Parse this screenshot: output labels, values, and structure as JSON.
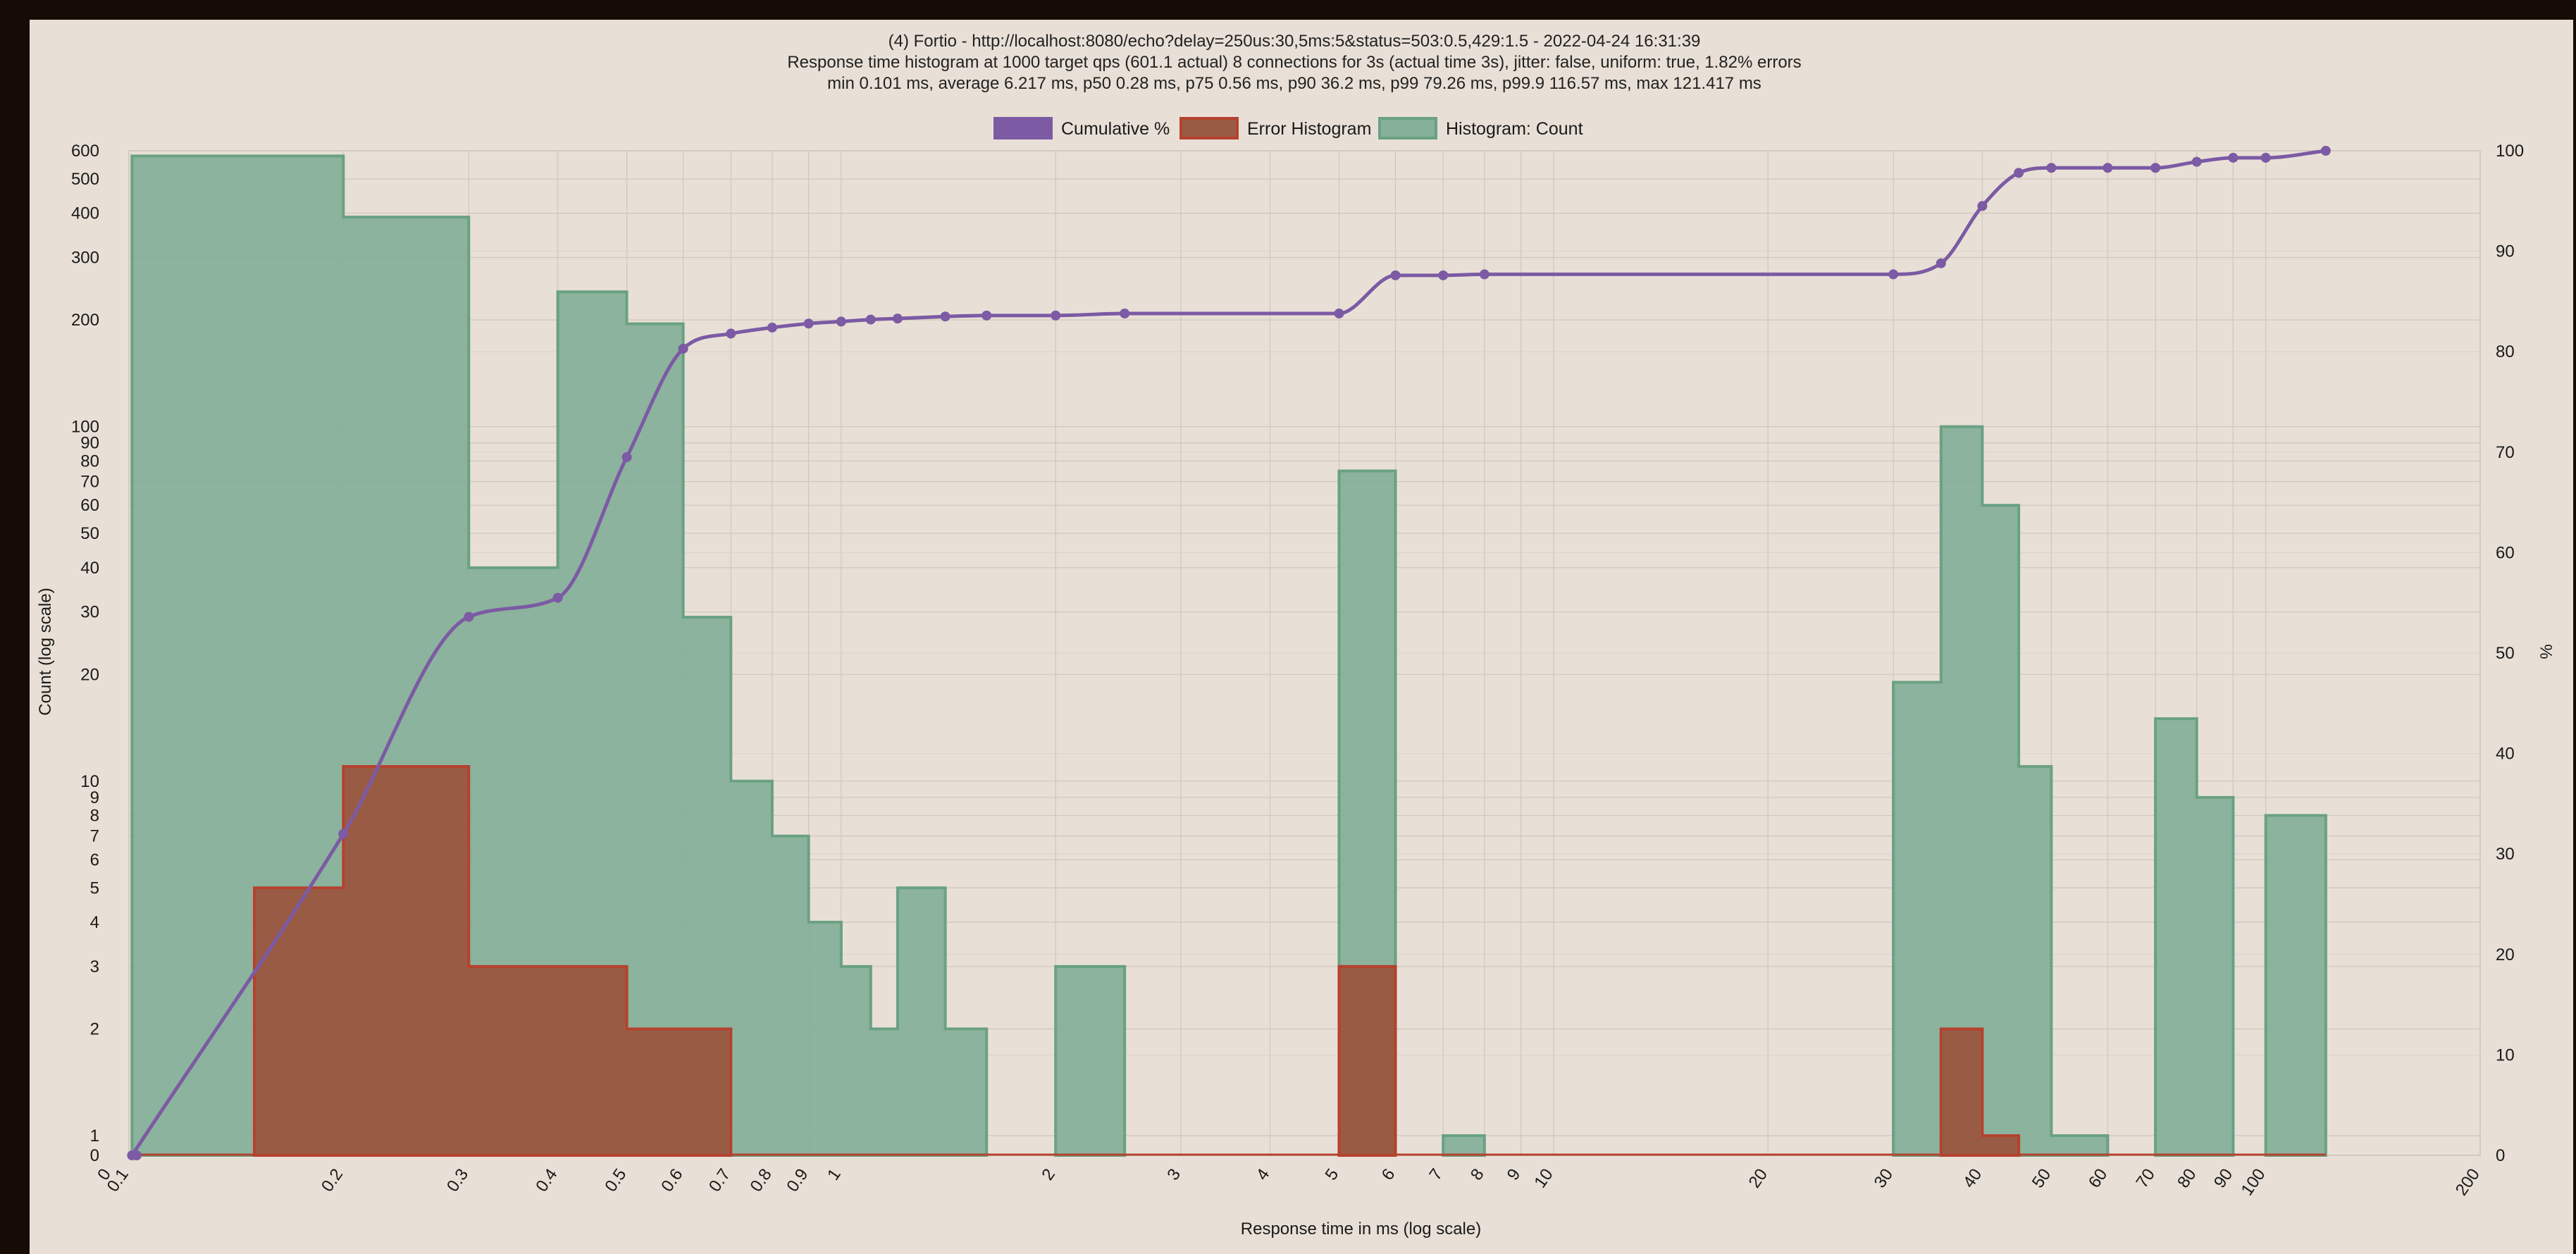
{
  "colors": {
    "background": "#e8e0d6",
    "outer": "#170b06",
    "cumulative": "#7c5aa4",
    "histogram_fill": "#87b09a",
    "histogram_stroke": "#6aa183",
    "error_fill": "#9a5b45",
    "error_stroke": "#b5422e",
    "grid": "#cfc6bc"
  },
  "chart_data": {
    "type": "bar",
    "title": [
      "(4) Fortio - http://localhost:8080/echo?delay=250us:30,5ms:5&status=503:0.5,429:1.5 - 2022-04-24 16:31:39",
      "Response time histogram at 1000 target qps (601.1 actual) 8 connections for 3s (actual time 3s), jitter: false, uniform: true, 1.82% errors",
      "min 0.101 ms, average 6.217 ms, p50 0.28 ms, p75 0.56 ms, p90 36.2 ms, p99 79.26 ms, p99.9 116.57 ms, max 121.417 ms"
    ],
    "xlabel": "Response time in ms (log scale)",
    "ylabel": "Count (log scale)",
    "y2label": "%",
    "x_scale": "log",
    "y_scale": "log",
    "xlim": [
      0.1,
      200
    ],
    "ylim": [
      0,
      600
    ],
    "y2lim": [
      0,
      100
    ],
    "grid": true,
    "legend_position": "top",
    "x_ticks": [
      "0",
      "0.1",
      "0.2",
      "0.3",
      "0.4",
      "0.5",
      "0.6",
      "0.7",
      "0.8",
      "0.9",
      "1",
      "2",
      "3",
      "4",
      "5",
      "6",
      "7",
      "8",
      "9",
      "10",
      "20",
      "30",
      "40",
      "50",
      "60",
      "70",
      "80",
      "90",
      "100",
      "200"
    ],
    "y_ticks": [
      "0",
      "1",
      "2",
      "3",
      "4",
      "5",
      "6",
      "7",
      "8",
      "9",
      "10",
      "20",
      "30",
      "40",
      "50",
      "60",
      "70",
      "80",
      "90",
      "100",
      "200",
      "300",
      "400",
      "500",
      "600"
    ],
    "y2_ticks": [
      "0",
      "10",
      "20",
      "30",
      "40",
      "50",
      "60",
      "70",
      "80",
      "90",
      "100"
    ],
    "legend": [
      "Cumulative %",
      "Error Histogram",
      "Histogram: Count"
    ],
    "series": [
      {
        "name": "Histogram: Count",
        "bins": [
          {
            "start": 0.101,
            "end": 0.2,
            "count": 580
          },
          {
            "start": 0.2,
            "end": 0.3,
            "count": 390
          },
          {
            "start": 0.3,
            "end": 0.4,
            "count": 40
          },
          {
            "start": 0.4,
            "end": 0.5,
            "count": 240
          },
          {
            "start": 0.5,
            "end": 0.6,
            "count": 195
          },
          {
            "start": 0.6,
            "end": 0.7,
            "count": 29
          },
          {
            "start": 0.7,
            "end": 0.8,
            "count": 10
          },
          {
            "start": 0.8,
            "end": 0.9,
            "count": 7
          },
          {
            "start": 0.9,
            "end": 1.0,
            "count": 4
          },
          {
            "start": 1.0,
            "end": 1.1,
            "count": 3
          },
          {
            "start": 1.1,
            "end": 1.2,
            "count": 2
          },
          {
            "start": 1.2,
            "end": 1.4,
            "count": 5
          },
          {
            "start": 1.4,
            "end": 1.6,
            "count": 2
          },
          {
            "start": 2.0,
            "end": 2.5,
            "count": 3
          },
          {
            "start": 5.0,
            "end": 6.0,
            "count": 75
          },
          {
            "start": 7.0,
            "end": 8.0,
            "count": 1
          },
          {
            "start": 30,
            "end": 35,
            "count": 19
          },
          {
            "start": 35,
            "end": 40,
            "count": 100
          },
          {
            "start": 40,
            "end": 45,
            "count": 60
          },
          {
            "start": 45,
            "end": 50,
            "count": 11
          },
          {
            "start": 50,
            "end": 60,
            "count": 1
          },
          {
            "start": 70,
            "end": 80,
            "count": 15
          },
          {
            "start": 80,
            "end": 90,
            "count": 9
          },
          {
            "start": 100,
            "end": 121.417,
            "count": 8
          }
        ]
      },
      {
        "name": "Error Histogram",
        "bins": [
          {
            "start": 0.15,
            "end": 0.2,
            "count": 5
          },
          {
            "start": 0.2,
            "end": 0.3,
            "count": 11
          },
          {
            "start": 0.3,
            "end": 0.5,
            "count": 3
          },
          {
            "start": 0.5,
            "end": 0.7,
            "count": 2
          },
          {
            "start": 5.0,
            "end": 6.0,
            "count": 3
          },
          {
            "start": 35,
            "end": 40,
            "count": 2
          },
          {
            "start": 40,
            "end": 45,
            "count": 1
          }
        ]
      },
      {
        "name": "Cumulative %",
        "x": [
          0.101,
          0.2,
          0.3,
          0.4,
          0.5,
          0.6,
          0.7,
          0.8,
          0.9,
          1.0,
          1.1,
          1.2,
          1.4,
          1.6,
          2.0,
          2.5,
          5.0,
          6.0,
          7.0,
          8.0,
          30,
          35,
          40,
          45,
          50,
          60,
          70,
          80,
          90,
          100,
          121.417
        ],
        "values": [
          0.0,
          32.0,
          53.6,
          55.5,
          69.5,
          80.3,
          81.8,
          82.4,
          82.8,
          83.0,
          83.2,
          83.3,
          83.5,
          83.6,
          83.6,
          83.8,
          83.8,
          87.6,
          87.6,
          87.7,
          87.7,
          88.8,
          94.5,
          97.8,
          98.3,
          98.3,
          98.3,
          98.9,
          99.3,
          99.3,
          100.0
        ]
      }
    ]
  }
}
